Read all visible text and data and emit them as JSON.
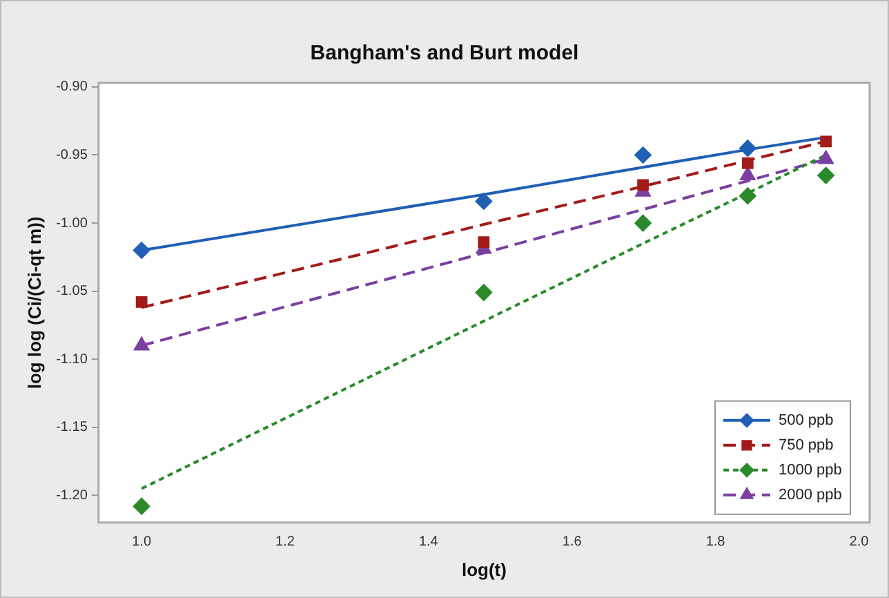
{
  "chart_data": {
    "type": "scatter",
    "title": "Bangham's and Burt model",
    "xlabel": "log(t)",
    "ylabel": "log log (Ci/(Ci-qt m))",
    "x": [
      1.0,
      1.477,
      1.699,
      1.845,
      1.954
    ],
    "series": [
      {
        "name": "500 ppb",
        "type": "scatter",
        "marker": "diamond",
        "color": "#1f5fb4",
        "values": [
          -1.02,
          -0.984,
          -0.95,
          -0.945,
          null
        ]
      },
      {
        "name": "750 ppb",
        "type": "scatter",
        "marker": "square",
        "color": "#a31a1a",
        "values": [
          -1.058,
          -1.014,
          -0.972,
          -0.956,
          -0.94
        ]
      },
      {
        "name": "1000 ppb",
        "type": "scatter",
        "marker": "diamond",
        "color": "#2a8a2a",
        "values": [
          -1.208,
          -1.051,
          -1.0,
          -0.98,
          -0.965
        ]
      },
      {
        "name": "2000 ppb",
        "type": "scatter",
        "marker": "triangle",
        "color": "#7b3fa0",
        "values": [
          -1.09,
          -1.019,
          -0.977,
          -0.965,
          -0.953
        ]
      },
      {
        "type": "line",
        "marker": "none",
        "line_style": "solid",
        "color": "#1f5fb4",
        "values": [
          -1.02,
          -0.979,
          -0.959,
          -0.946,
          -0.937
        ]
      },
      {
        "type": "line",
        "marker": "none",
        "line_style": "dashed",
        "color": "#a31a1a",
        "values": [
          -1.062,
          -1.001,
          -0.973,
          -0.954,
          -0.94
        ]
      },
      {
        "type": "line",
        "marker": "none",
        "line_style": "dotted",
        "color": "#2a8a2a",
        "values": [
          -1.195,
          -1.072,
          -1.015,
          -0.978,
          -0.95
        ]
      },
      {
        "type": "line",
        "marker": "none",
        "line_style": "dashed",
        "color": "#7b3fa0",
        "values": [
          -1.09,
          -1.022,
          -0.99,
          -0.969,
          -0.953
        ]
      }
    ],
    "xlim": [
      0.94,
      2.015
    ],
    "xticks": [
      {
        "value": 1.0,
        "label": "1.0"
      },
      1.2,
      1.4,
      1.6,
      1.8,
      {
        "value": 2.0,
        "label": "2.0"
      }
    ],
    "ylim": [
      -1.22,
      -0.897
    ],
    "yticks": [
      {
        "value": -1.2,
        "label": "-1.20"
      },
      -1.15,
      {
        "value": -1.1,
        "label": "-1.10"
      },
      -1.05,
      {
        "value": -1.0,
        "label": "-1.00"
      },
      -0.95,
      {
        "value": -0.9,
        "label": "-0.90"
      }
    ],
    "grid": false,
    "legend": "bottom right"
  }
}
